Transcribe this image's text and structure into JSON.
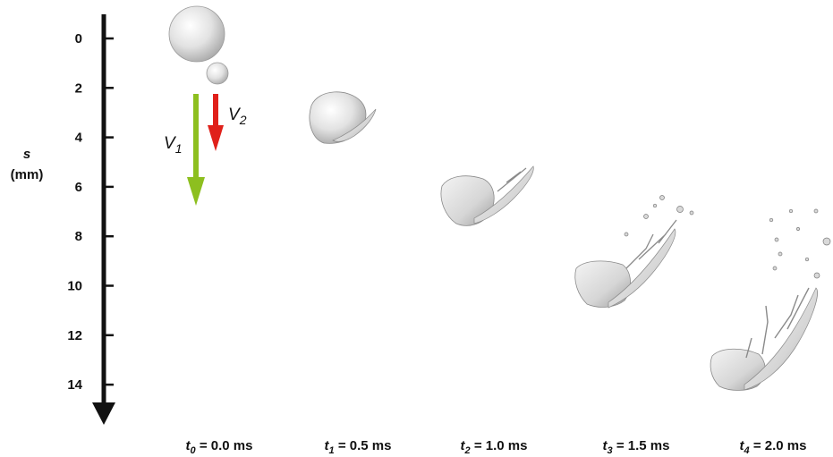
{
  "axis": {
    "symbol": "s",
    "unit": "(mm)",
    "ticks": [
      "0",
      "2",
      "4",
      "6",
      "8",
      "10",
      "12",
      "14"
    ],
    "arrow_color": "#111111"
  },
  "velocities": [
    {
      "symbol": "V",
      "subscript": "1",
      "color": "#8dbf1f"
    },
    {
      "symbol": "V",
      "subscript": "2",
      "color": "#e0201a"
    }
  ],
  "frames": [
    {
      "symbol": "t",
      "subscript": "0",
      "label": " = 0.0 ms"
    },
    {
      "symbol": "t",
      "subscript": "1",
      "label": " = 0.5 ms"
    },
    {
      "symbol": "t",
      "subscript": "2",
      "label": " = 1.0 ms"
    },
    {
      "symbol": "t",
      "subscript": "3",
      "label": " = 1.5 ms"
    },
    {
      "symbol": "t",
      "subscript": "4",
      "label": " = 2.0 ms"
    }
  ],
  "colors": {
    "droplet_fill": "#d8d8d8",
    "droplet_edge": "#8a8a8a"
  }
}
